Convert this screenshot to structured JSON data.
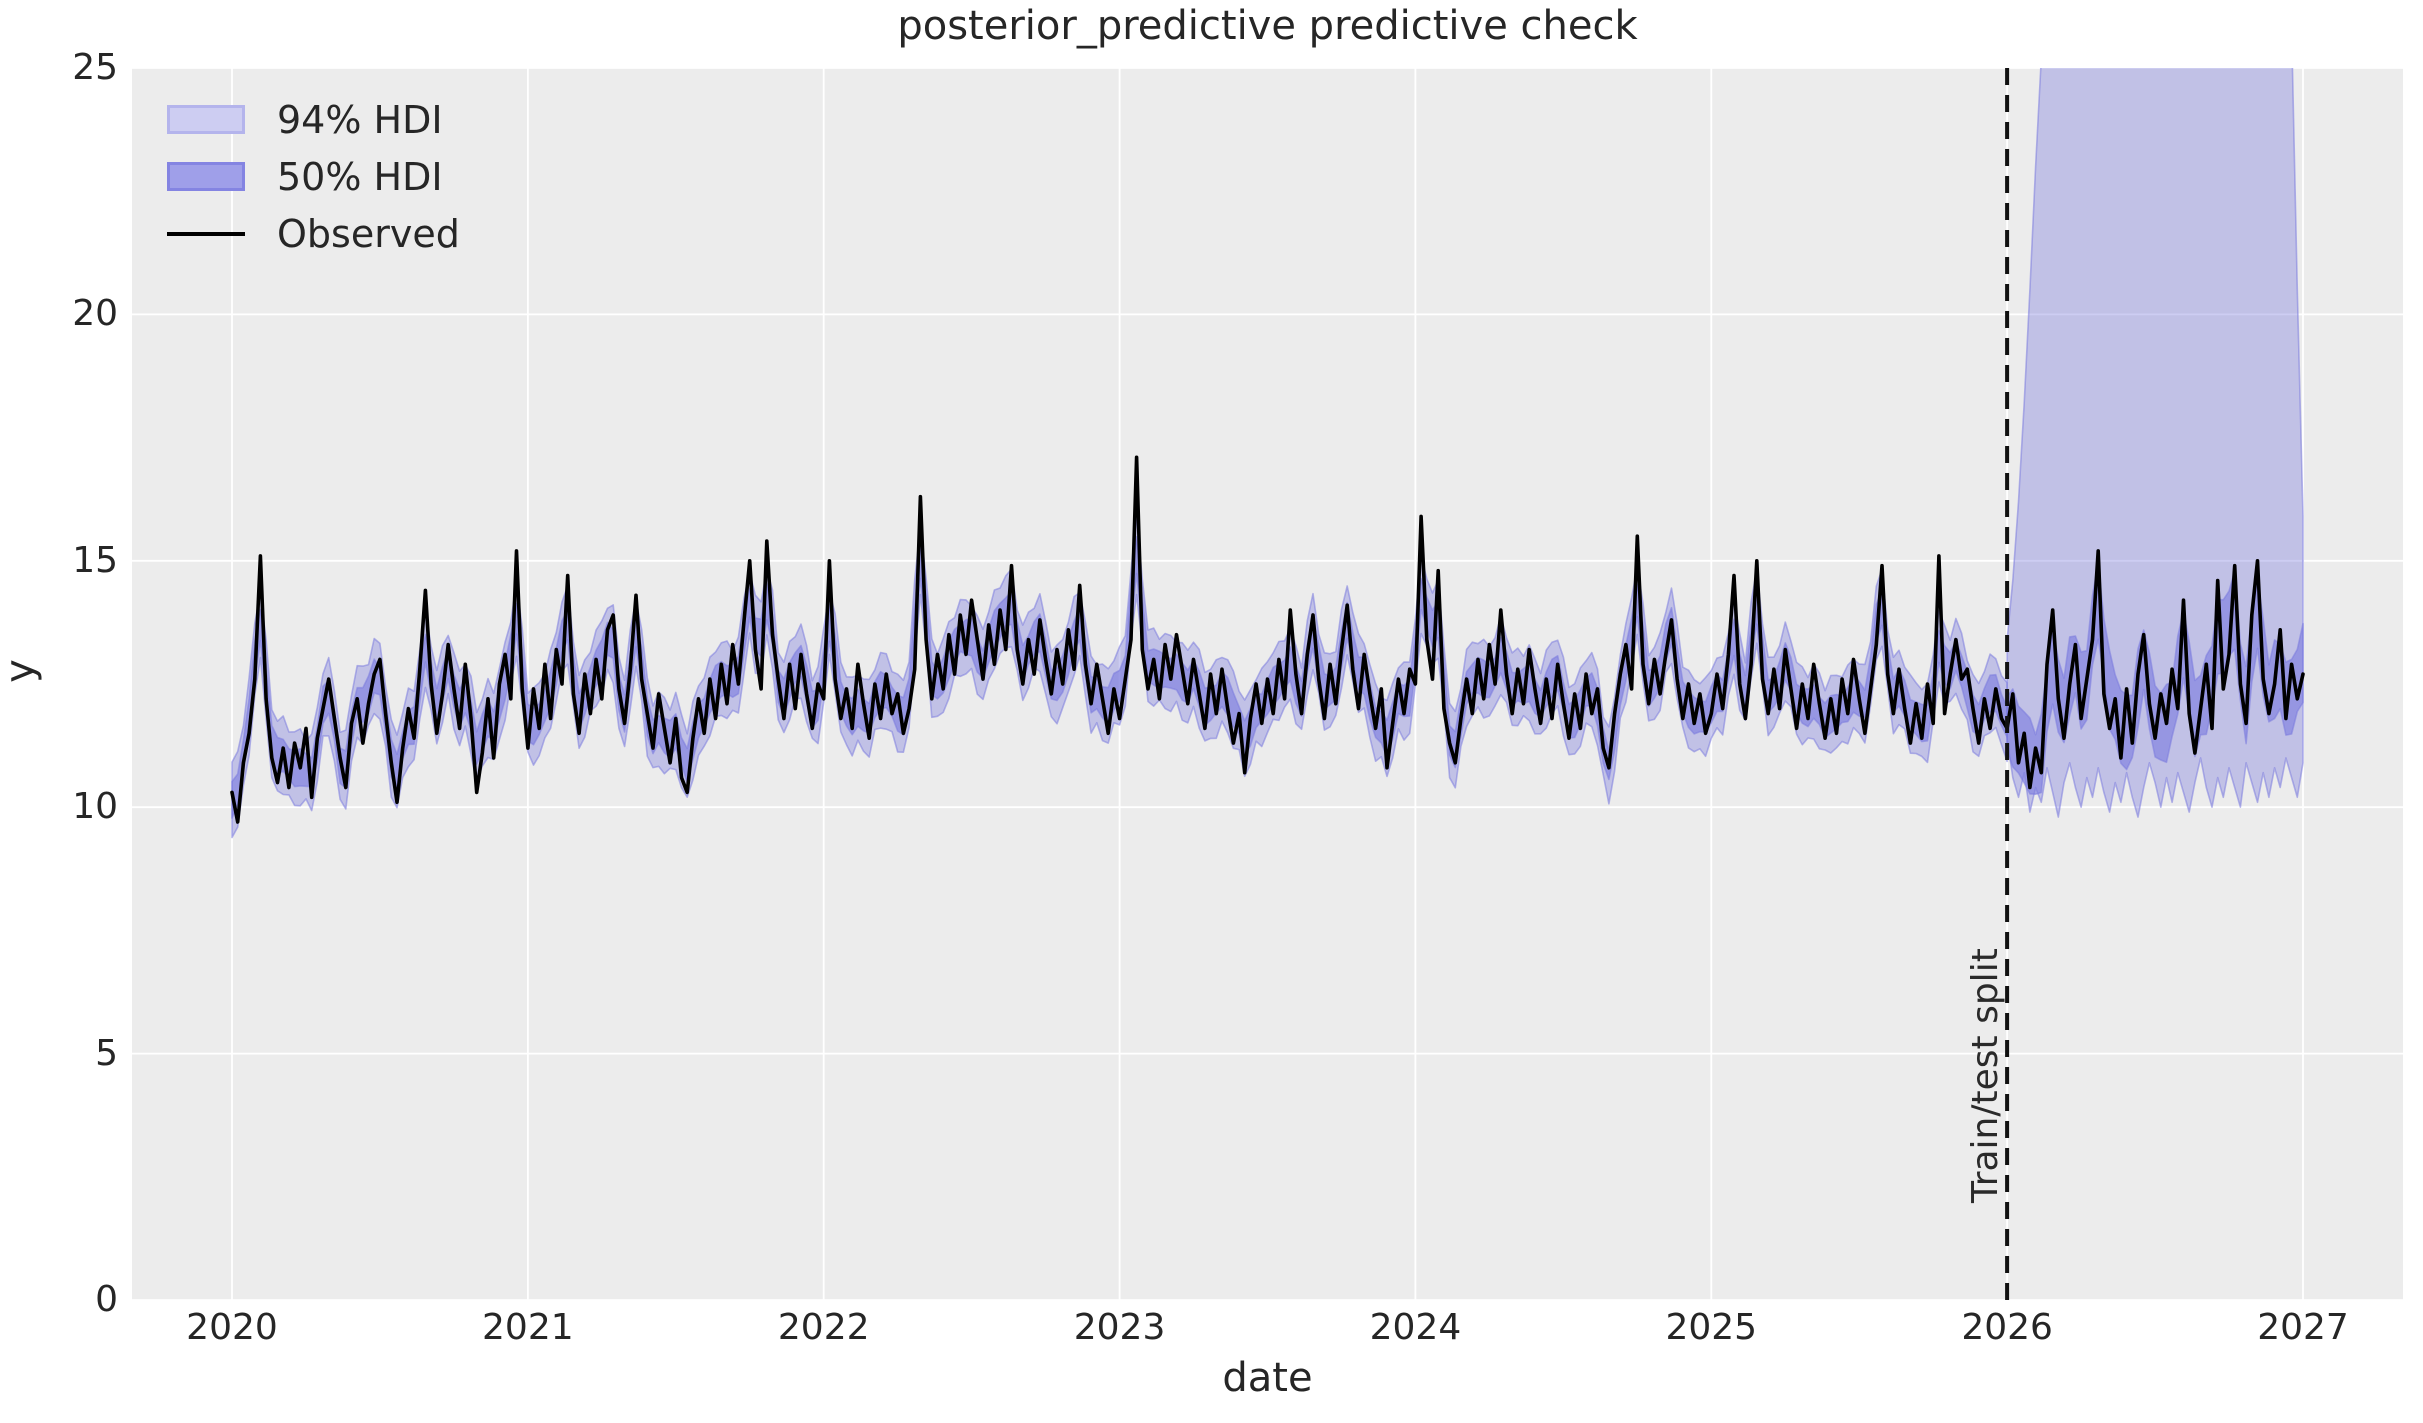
{
  "figure": {
    "title": "posterior_predictive predictive check",
    "xlabel": "date",
    "ylabel": "y"
  },
  "legend": {
    "items": [
      {
        "label": "94% HDI",
        "type": "patch",
        "fill": "#cdcdf2",
        "edge": "#b4b4ec"
      },
      {
        "label": "50% HDI",
        "type": "patch",
        "fill": "#9f9fe9",
        "edge": "#8484e2"
      },
      {
        "label": "Observed",
        "type": "line",
        "color": "#000000"
      }
    ]
  },
  "annotations": {
    "split_label": "Train/test split",
    "split_x": 2026.0
  },
  "axes": {
    "x_ticks": [
      {
        "label": "2020",
        "value": 2020
      },
      {
        "label": "2021",
        "value": 2021
      },
      {
        "label": "2022",
        "value": 2022
      },
      {
        "label": "2023",
        "value": 2023
      },
      {
        "label": "2024",
        "value": 2024
      },
      {
        "label": "2025",
        "value": 2025
      },
      {
        "label": "2026",
        "value": 2026
      },
      {
        "label": "2027",
        "value": 2027
      }
    ],
    "y_ticks": [
      {
        "label": "0",
        "value": 0
      },
      {
        "label": "5",
        "value": 5
      },
      {
        "label": "10",
        "value": 10
      },
      {
        "label": "15",
        "value": 15
      },
      {
        "label": "20",
        "value": 20
      },
      {
        "label": "25",
        "value": 25
      }
    ]
  },
  "chart_data": {
    "type": "line",
    "title": "posterior_predictive predictive check",
    "xlabel": "date",
    "ylabel": "y",
    "x_range": [
      2019.662,
      2027.338
    ],
    "y_range": [
      0,
      25
    ],
    "grid": true,
    "legend_position": "upper left",
    "x_start": 2020.0,
    "x_step": 0.01923076923,
    "train_test_split_x": 2026.0,
    "observed": [
      10.3,
      9.7,
      10.9,
      11.5,
      12.6,
      15.1,
      12.2,
      11.0,
      10.5,
      11.2,
      10.4,
      11.3,
      10.8,
      11.6,
      10.2,
      11.4,
      12.0,
      12.6,
      11.8,
      11.0,
      10.4,
      11.7,
      12.2,
      11.3,
      12.1,
      12.7,
      13.0,
      11.9,
      10.9,
      10.1,
      11.2,
      12.0,
      11.4,
      12.8,
      14.4,
      12.5,
      11.5,
      12.3,
      13.3,
      12.4,
      11.6,
      12.9,
      11.8,
      10.3,
      11.1,
      12.2,
      11.0,
      12.5,
      13.1,
      12.2,
      15.2,
      12.4,
      11.2,
      12.4,
      11.6,
      12.9,
      11.8,
      13.2,
      12.5,
      14.7,
      12.3,
      11.5,
      12.7,
      11.9,
      13.0,
      12.2,
      13.6,
      13.9,
      12.4,
      11.7,
      12.8,
      14.3,
      12.6,
      11.9,
      11.2,
      12.3,
      11.6,
      10.9,
      11.8,
      10.6,
      10.3,
      11.4,
      12.2,
      11.5,
      12.6,
      11.8,
      12.9,
      12.1,
      13.3,
      12.5,
      13.8,
      15.0,
      13.2,
      12.4,
      15.4,
      13.5,
      12.6,
      11.8,
      12.9,
      12.0,
      13.1,
      12.3,
      11.6,
      12.5,
      12.2,
      15.0,
      12.6,
      11.8,
      12.4,
      11.6,
      12.9,
      12.1,
      11.4,
      12.5,
      11.8,
      12.7,
      11.9,
      12.3,
      11.5,
      12.0,
      12.8,
      16.3,
      13.4,
      12.2,
      13.1,
      12.4,
      13.5,
      12.7,
      13.9,
      13.1,
      14.2,
      13.4,
      12.6,
      13.7,
      12.9,
      14.0,
      13.2,
      14.9,
      13.2,
      12.5,
      13.4,
      12.7,
      13.8,
      13.0,
      12.3,
      13.2,
      12.5,
      13.6,
      12.8,
      14.5,
      12.9,
      12.1,
      12.9,
      12.2,
      11.5,
      12.4,
      11.8,
      12.6,
      13.4,
      17.1,
      13.2,
      12.4,
      13.0,
      12.2,
      13.3,
      12.6,
      13.5,
      12.8,
      12.1,
      13.0,
      12.3,
      11.6,
      12.7,
      11.9,
      12.8,
      12.0,
      11.3,
      11.9,
      10.7,
      11.8,
      12.5,
      11.7,
      12.6,
      11.9,
      13.0,
      12.2,
      14.0,
      12.7,
      11.9,
      13.1,
      13.9,
      12.6,
      11.8,
      12.9,
      12.1,
      13.2,
      14.1,
      12.8,
      12.0,
      13.1,
      12.3,
      11.6,
      12.4,
      10.8,
      11.7,
      12.6,
      11.9,
      12.8,
      12.5,
      15.9,
      13.4,
      12.6,
      14.8,
      12.0,
      11.3,
      10.9,
      11.8,
      12.6,
      11.9,
      13.0,
      12.2,
      13.3,
      12.5,
      14.0,
      12.7,
      11.9,
      12.8,
      12.1,
      13.2,
      12.4,
      11.7,
      12.6,
      11.8,
      12.9,
      12.1,
      11.4,
      12.3,
      11.6,
      12.7,
      11.9,
      12.4,
      11.2,
      10.8,
      11.9,
      12.7,
      13.3,
      12.4,
      15.5,
      12.9,
      12.1,
      13.0,
      12.3,
      13.1,
      13.8,
      12.6,
      11.8,
      12.5,
      11.7,
      12.3,
      11.5,
      11.9,
      12.7,
      12.0,
      13.1,
      14.7,
      12.5,
      11.8,
      12.9,
      15.0,
      12.6,
      11.9,
      12.8,
      12.0,
      13.2,
      12.4,
      11.6,
      12.5,
      11.8,
      12.9,
      12.1,
      11.4,
      12.2,
      11.5,
      12.6,
      11.9,
      13.0,
      12.2,
      11.5,
      12.4,
      13.3,
      14.9,
      12.7,
      11.9,
      12.8,
      12.0,
      11.3,
      12.1,
      11.4,
      12.5,
      11.7,
      15.1,
      11.9,
      12.7,
      13.4,
      12.6,
      12.8,
      12.0,
      11.3,
      12.2,
      11.6,
      12.4,
      11.8,
      11.6,
      12.3,
      10.9,
      11.5,
      10.4,
      11.2,
      10.7,
      12.9,
      14.0,
      12.2,
      11.4,
      12.5,
      13.3,
      11.8,
      12.6,
      13.4,
      15.2,
      12.3,
      11.6,
      12.2,
      11.0,
      12.4,
      11.3,
      12.7,
      13.5,
      12.1,
      11.4,
      12.3,
      11.7,
      12.8,
      12.0,
      14.2,
      11.9,
      11.1,
      12.0,
      12.9,
      11.6,
      14.6,
      12.4,
      13.1,
      14.9,
      12.5,
      11.7,
      13.9,
      15.0,
      12.6,
      11.9,
      12.5,
      13.6,
      11.8,
      12.9,
      12.2,
      12.7
    ],
    "hdi_train": {
      "hw94_base": 0.58,
      "hw94_var": 0.22,
      "hw50_base": 0.27,
      "hw50_var": 0.11,
      "center_jitter": 0.3
    },
    "hdi_test_50": {
      "hw_base": 0.55,
      "hw_var": 0.25,
      "center_jitter": 0.4
    },
    "hdi_test_94": {
      "x_start": 2026.0,
      "x_step": 0.01923076923,
      "upper": [
        13.4,
        14.6,
        16.2,
        18.2,
        20.5,
        23.0,
        25.2,
        26.6,
        27.5,
        28.0,
        28.3,
        28.5,
        28.6,
        28.6,
        28.7,
        28.7,
        28.8,
        28.8,
        28.8,
        28.9,
        28.9,
        28.9,
        29.0,
        29.0,
        29.0,
        29.0,
        29.0,
        29.0,
        29.0,
        29.0,
        29.0,
        29.0,
        29.0,
        28.9,
        28.9,
        28.9,
        28.8,
        28.8,
        28.8,
        28.7,
        28.7,
        28.6,
        28.6,
        28.5,
        28.4,
        28.3,
        28.2,
        28.0,
        27.6,
        27.0,
        25.8,
        20.5,
        15.9
      ],
      "lower": [
        11.4,
        10.6,
        10.2,
        10.7,
        9.9,
        10.4,
        10.1,
        10.8,
        10.3,
        9.8,
        10.5,
        10.9,
        10.4,
        10.0,
        10.6,
        10.2,
        10.8,
        10.3,
        9.9,
        10.5,
        10.1,
        10.7,
        10.2,
        9.8,
        10.4,
        10.9,
        10.5,
        10.0,
        10.6,
        10.1,
        10.7,
        10.3,
        9.9,
        10.5,
        11.0,
        10.4,
        10.0,
        10.6,
        10.2,
        10.8,
        10.4,
        10.0,
        10.9,
        10.5,
        10.1,
        10.7,
        10.2,
        10.8,
        10.4,
        11.0,
        10.6,
        10.2,
        10.9
      ]
    },
    "colors": {
      "band_base": "#7c7cde",
      "fill94_opacity": 0.38,
      "fill50_opacity": 0.62,
      "edge_opacity": 0.55,
      "observed": "#000000",
      "plot_background": "#ececec",
      "grid": "#ffffff",
      "split_line": "#111111",
      "text": "#262626"
    }
  }
}
